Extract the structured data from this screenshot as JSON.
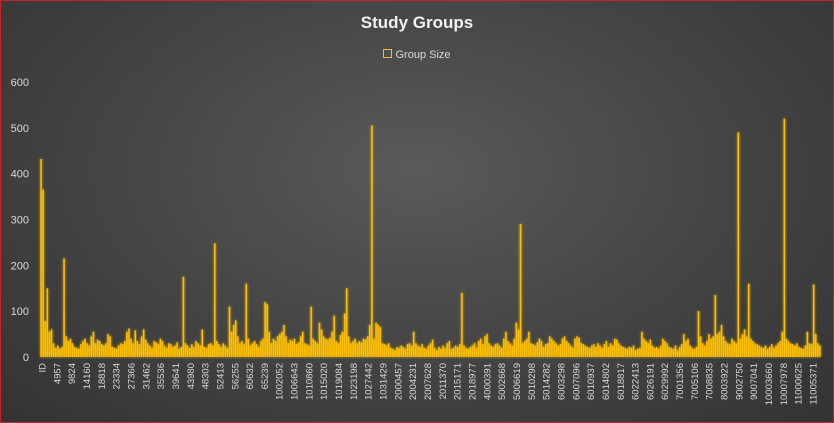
{
  "chart_data": {
    "type": "bar",
    "title": "Study Groups",
    "xlabel": "",
    "ylabel": "",
    "ylim": [
      0,
      600
    ],
    "yticks": [
      0,
      100,
      200,
      300,
      400,
      500,
      600
    ],
    "grid": false,
    "legend_position": "top",
    "bar_color": "#ffc000",
    "series": [
      {
        "name": "Group Size"
      }
    ],
    "x_tick_labels": [
      "ID",
      "4957",
      "9824",
      "14160",
      "18818",
      "23334",
      "27366",
      "31462",
      "35536",
      "39641",
      "43980",
      "48303",
      "52413",
      "56255",
      "60632",
      "65239",
      "1002052",
      "1006643",
      "1010860",
      "1015020",
      "1019084",
      "1023198",
      "1027442",
      "1031429",
      "2000457",
      "2004231",
      "2007628",
      "2011370",
      "2015171",
      "2018977",
      "4000391",
      "5002668",
      "5006619",
      "5010298",
      "5014282",
      "6003298",
      "6007096",
      "6010937",
      "6014802",
      "6018817",
      "6022413",
      "6026191",
      "6029992",
      "7001356",
      "7005106",
      "7008835",
      "8003922",
      "9002750",
      "9007041",
      "10003660",
      "10007978",
      "11000625",
      "11005371"
    ],
    "values": [
      432,
      365,
      78,
      150,
      55,
      60,
      30,
      20,
      25,
      18,
      22,
      215,
      45,
      35,
      40,
      30,
      22,
      20,
      18,
      28,
      35,
      40,
      30,
      25,
      45,
      55,
      30,
      38,
      35,
      28,
      25,
      30,
      50,
      45,
      22,
      20,
      18,
      25,
      30,
      28,
      35,
      55,
      62,
      40,
      30,
      58,
      35,
      28,
      45,
      60,
      38,
      30,
      25,
      20,
      35,
      32,
      28,
      40,
      35,
      25,
      20,
      30,
      28,
      22,
      25,
      32,
      18,
      22,
      175,
      30,
      25,
      20,
      28,
      22,
      35,
      30,
      25,
      60,
      22,
      20,
      28,
      30,
      25,
      248,
      35,
      28,
      22,
      30,
      25,
      20,
      110,
      55,
      70,
      80,
      45,
      30,
      35,
      28,
      160,
      40,
      25,
      30,
      35,
      28,
      22,
      35,
      40,
      120,
      115,
      55,
      30,
      40,
      35,
      45,
      50,
      55,
      70,
      45,
      30,
      38,
      35,
      40,
      28,
      32,
      45,
      55,
      30,
      28,
      25,
      110,
      40,
      35,
      30,
      75,
      60,
      45,
      40,
      38,
      42,
      55,
      90,
      35,
      30,
      48,
      55,
      95,
      150,
      45,
      30,
      35,
      40,
      30,
      35,
      32,
      40,
      38,
      45,
      70,
      505,
      40,
      75,
      70,
      65,
      30,
      28,
      25,
      30,
      20,
      18,
      15,
      22,
      20,
      25,
      22,
      18,
      28,
      30,
      25,
      55,
      30,
      25,
      22,
      28,
      20,
      18,
      25,
      30,
      38,
      20,
      15,
      22,
      18,
      25,
      20,
      30,
      35,
      18,
      20,
      25,
      22,
      28,
      140,
      25,
      20,
      18,
      22,
      25,
      30,
      20,
      35,
      40,
      28,
      45,
      50,
      30,
      25,
      22,
      28,
      30,
      25,
      20,
      40,
      55,
      35,
      30,
      25,
      40,
      75,
      60,
      290,
      30,
      35,
      40,
      55,
      30,
      28,
      25,
      32,
      40,
      35,
      22,
      28,
      30,
      45,
      40,
      35,
      30,
      25,
      28,
      40,
      45,
      35,
      30,
      25,
      20,
      40,
      45,
      42,
      30,
      28,
      25,
      22,
      20,
      25,
      28,
      22,
      30,
      25,
      20,
      28,
      35,
      22,
      30,
      25,
      40,
      38,
      30,
      25,
      22,
      20,
      18,
      22,
      20,
      25,
      15,
      18,
      20,
      55,
      40,
      35,
      30,
      38,
      25,
      20,
      22,
      18,
      25,
      40,
      35,
      30,
      22,
      20,
      18,
      25,
      15,
      22,
      28,
      50,
      35,
      40,
      25,
      20,
      18,
      22,
      100,
      45,
      30,
      25,
      35,
      50,
      40,
      45,
      135,
      50,
      55,
      70,
      45,
      35,
      30,
      28,
      40,
      35,
      30,
      490,
      40,
      50,
      60,
      45,
      160,
      40,
      35,
      30,
      28,
      25,
      22,
      20,
      25,
      18,
      22,
      28,
      20,
      25,
      30,
      35,
      55,
      520,
      40,
      35,
      30,
      28,
      25,
      30,
      22,
      20,
      18,
      25,
      55,
      30,
      28,
      158,
      50,
      30,
      25
    ]
  }
}
